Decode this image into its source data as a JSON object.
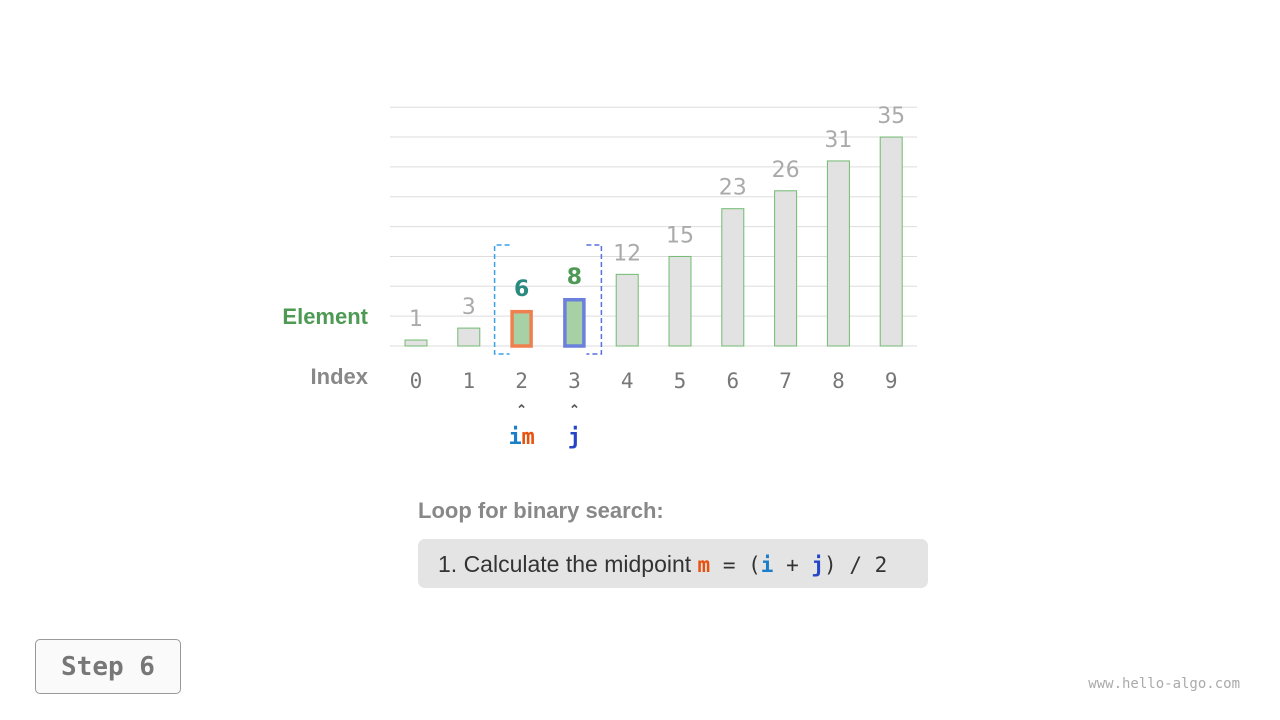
{
  "labels": {
    "element": "Element",
    "index": "Index"
  },
  "array": [
    1,
    3,
    6,
    8,
    12,
    15,
    23,
    26,
    31,
    35
  ],
  "pointers": {
    "i": 2,
    "m": 2,
    "j": 3
  },
  "pointer_labels": {
    "i": "i",
    "m": "m",
    "j": "j"
  },
  "colors": {
    "element_label": "#4e9a54",
    "bar_fill": "#e2e2e2",
    "bar_stroke": "#70bb70",
    "active_fill": "#a7d1a4",
    "m_color": "#f07f50",
    "j_color": "#6b7fdc",
    "i_text": "#1a7fc8",
    "m_text": "#e8500e",
    "j_text": "#2545c8",
    "range_left": "#3aa0e8",
    "range_right": "#5a70d8",
    "value_gray": "#aaaaaa",
    "value_m": "#2a8a80",
    "value_j": "#4e9a54"
  },
  "loop_title": "Loop for binary search:",
  "step_text": {
    "prefix": "1. Calculate the midpoint ",
    "m": "m",
    "eq": " = (",
    "i": "i",
    "plus": " + ",
    "j": "j",
    "suffix": ") / 2"
  },
  "step_button": "Step 6",
  "site": "www.hello-algo.com"
}
